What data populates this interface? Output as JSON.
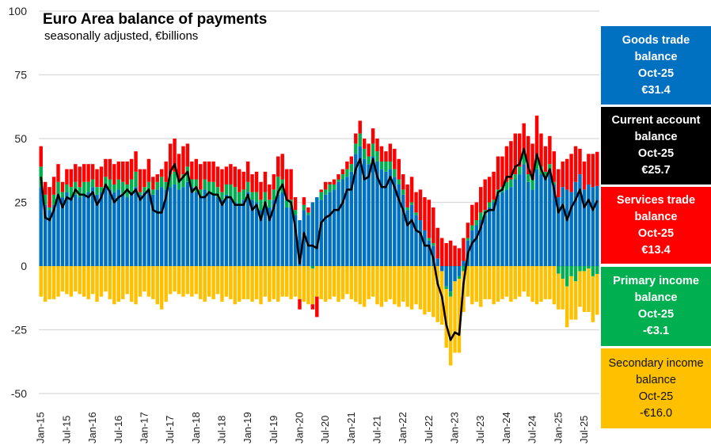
{
  "chart_data": {
    "type": "bar",
    "stacked": true,
    "title": "Euro Area balance of payments",
    "subtitle": "seasonally adjusted, €billions",
    "xlabel": "",
    "ylabel": "",
    "ylim": [
      -50,
      100
    ],
    "yticks": [
      "100",
      "75",
      "50",
      "25",
      "0",
      "-25",
      "-50"
    ],
    "ytick_values": [
      100,
      75,
      50,
      25,
      0,
      -25,
      -50
    ],
    "grid": true,
    "start": "Jan-15",
    "months": 130,
    "xtick_labels": [
      "Jan-15",
      "Jul-15",
      "Jan-16",
      "Jul-16",
      "Jan-17",
      "Jul-17",
      "Jan-18",
      "Jul-18",
      "Jan-19",
      "Jul-19",
      "Jan-20",
      "Jul-20",
      "Jan-21",
      "Jul-21",
      "Jan-22",
      "Jul-22",
      "Jan-23",
      "Jul-23",
      "Jan-24",
      "Jul-24",
      "Jan-25",
      "Jul-25"
    ],
    "series": [
      {
        "name": "Goods trade balance",
        "color": "#0070C0",
        "values": [
          31,
          24,
          22,
          24,
          28,
          27,
          29,
          27,
          28,
          27,
          28,
          29,
          31,
          28,
          29,
          31,
          30,
          29,
          30,
          28,
          27,
          29,
          31,
          28,
          29,
          30,
          28,
          30,
          31,
          30,
          31,
          32,
          30,
          31,
          33,
          31,
          29,
          27,
          30,
          29,
          28,
          27,
          26,
          28,
          27,
          25,
          24,
          26,
          29,
          26,
          25,
          22,
          24,
          23,
          26,
          28,
          29,
          23,
          23,
          20,
          18,
          22,
          20,
          25,
          27,
          26,
          28,
          29,
          30,
          33,
          34,
          35,
          37,
          44,
          47,
          42,
          40,
          43,
          41,
          38,
          37,
          38,
          35,
          32,
          28,
          22,
          24,
          20,
          18,
          14,
          10,
          8,
          3,
          -2,
          -8,
          -10,
          -6,
          -4,
          2,
          10,
          14,
          16,
          18,
          20,
          23,
          25,
          28,
          29,
          30,
          31,
          34,
          36,
          40,
          33,
          30,
          38,
          36,
          35,
          38,
          32,
          27,
          31,
          30,
          29,
          33,
          36,
          30,
          32,
          31,
          31.4
        ]
      },
      {
        "name": "Services trade balance",
        "color": "#FF0000",
        "values": [
          8,
          5,
          8,
          7,
          7,
          4,
          6,
          7,
          7,
          8,
          7,
          7,
          6,
          7,
          8,
          7,
          8,
          8,
          7,
          8,
          9,
          8,
          8,
          9,
          7,
          9,
          5,
          3,
          3,
          8,
          12,
          13,
          10,
          11,
          9,
          7,
          8,
          10,
          7,
          8,
          8,
          8,
          9,
          7,
          8,
          8,
          9,
          7,
          8,
          7,
          8,
          7,
          8,
          6,
          6,
          8,
          10,
          12,
          12,
          5,
          -4,
          3,
          2,
          -2,
          -8,
          1,
          3,
          1,
          2,
          2,
          2,
          3,
          3,
          4,
          5,
          4,
          5,
          6,
          5,
          6,
          4,
          7,
          8,
          8,
          6,
          9,
          10,
          8,
          12,
          13,
          15,
          14,
          12,
          11,
          9,
          10,
          8,
          7,
          9,
          6,
          8,
          7,
          10,
          12,
          10,
          11,
          13,
          12,
          14,
          15,
          16,
          13,
          12,
          15,
          14,
          17,
          13,
          10,
          11,
          12,
          11,
          10,
          12,
          15,
          14,
          10,
          11,
          12,
          13,
          13.4
        ]
      },
      {
        "name": "Primary income balance",
        "color": "#00B050",
        "values": [
          8,
          4,
          1,
          4,
          5,
          2,
          3,
          4,
          5,
          4,
          5,
          4,
          3,
          3,
          2,
          4,
          4,
          3,
          4,
          5,
          5,
          5,
          6,
          1,
          2,
          3,
          2,
          3,
          4,
          3,
          5,
          5,
          4,
          5,
          6,
          3,
          5,
          3,
          4,
          4,
          5,
          4,
          3,
          4,
          5,
          6,
          5,
          4,
          4,
          3,
          4,
          4,
          5,
          3,
          4,
          7,
          5,
          3,
          3,
          2,
          0,
          2,
          1,
          -1,
          0,
          3,
          2,
          3,
          2,
          1,
          2,
          3,
          3,
          4,
          5,
          4,
          3,
          5,
          4,
          3,
          4,
          3,
          3,
          2,
          2,
          1,
          1,
          1,
          0,
          0,
          1,
          1,
          0,
          0,
          -1,
          -2,
          0,
          -1,
          -2,
          1,
          2,
          2,
          3,
          2,
          2,
          1,
          2,
          2,
          3,
          3,
          2,
          3,
          4,
          3,
          4,
          4,
          3,
          2,
          2,
          1,
          -3,
          -5,
          -8,
          -4,
          -6,
          -2,
          -2,
          -1,
          -4,
          -3.1
        ]
      },
      {
        "name": "Secondary income balance",
        "color": "#FFC000",
        "values": [
          -12,
          -14,
          -13,
          -13,
          -12,
          -10,
          -11,
          -12,
          -10,
          -11,
          -12,
          -13,
          -11,
          -14,
          -12,
          -10,
          -13,
          -15,
          -14,
          -13,
          -11,
          -14,
          -15,
          -12,
          -10,
          -12,
          -13,
          -15,
          -17,
          -14,
          -11,
          -10,
          -11,
          -12,
          -11,
          -12,
          -11,
          -13,
          -14,
          -12,
          -13,
          -11,
          -14,
          -12,
          -13,
          -15,
          -14,
          -13,
          -13,
          -14,
          -13,
          -15,
          -12,
          -14,
          -13,
          -14,
          -12,
          -12,
          -13,
          -12,
          -13,
          -14,
          -15,
          -14,
          -12,
          -13,
          -14,
          -13,
          -12,
          -14,
          -13,
          -11,
          -13,
          -14,
          -15,
          -16,
          -13,
          -12,
          -15,
          -16,
          -14,
          -13,
          -15,
          -16,
          -14,
          -16,
          -17,
          -15,
          -17,
          -19,
          -18,
          -20,
          -22,
          -21,
          -23,
          -27,
          -28,
          -29,
          -16,
          -12,
          -15,
          -14,
          -16,
          -13,
          -13,
          -15,
          -14,
          -13,
          -12,
          -14,
          -13,
          -12,
          -10,
          -12,
          -14,
          -15,
          -14,
          -13,
          -13,
          -15,
          -14,
          -12,
          -16,
          -17,
          -15,
          -14,
          -16,
          -17,
          -18,
          -16.0
        ]
      }
    ],
    "line": {
      "name": "Current account balance",
      "color": "#000000",
      "values": "sum of components"
    }
  },
  "legend_boxes": [
    {
      "lines": [
        "Goods trade",
        "balance",
        "Oct-25",
        "€31.4"
      ],
      "color": "#0070C0"
    },
    {
      "lines": [
        "Current account",
        "balance",
        "Oct-25",
        "€25.7"
      ],
      "color": "#000000"
    },
    {
      "lines": [
        "Services trade",
        "balance",
        "Oct-25",
        "€13.4"
      ],
      "color": "#FF0000"
    },
    {
      "lines": [
        "Primary income",
        "balance",
        "Oct-25",
        "-€3.1"
      ],
      "color": "#00B050"
    },
    {
      "lines": [
        "Secondary income",
        "balance",
        "Oct-25",
        "-€16.0"
      ],
      "color": "#FFC000"
    }
  ]
}
